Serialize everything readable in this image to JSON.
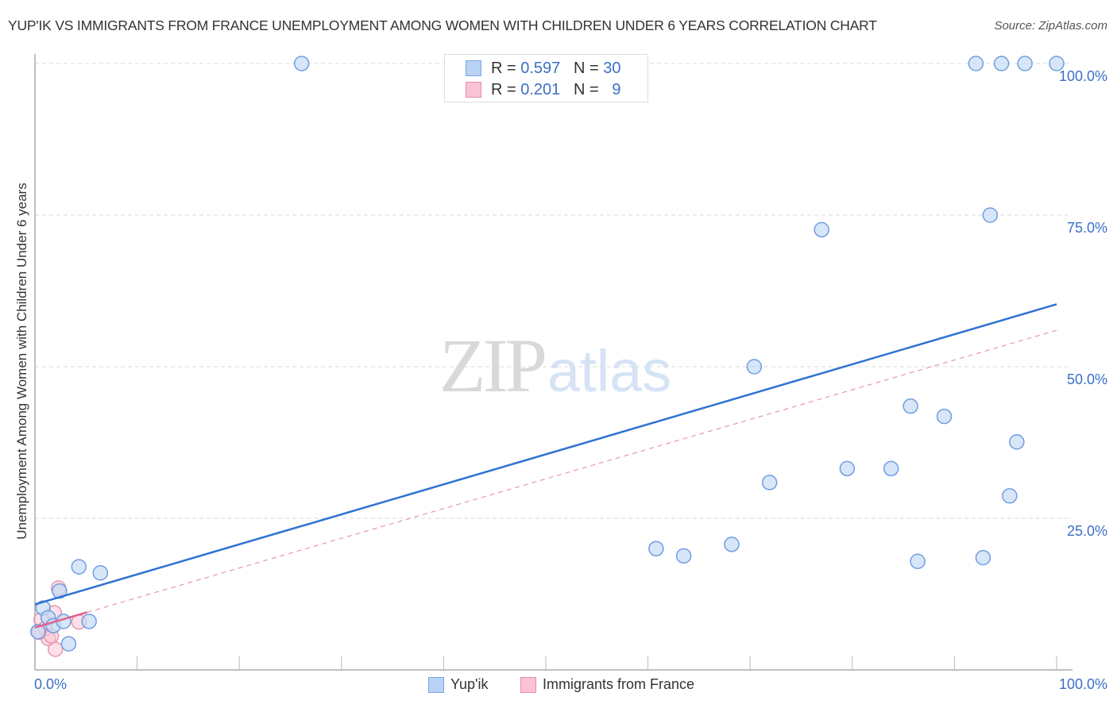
{
  "header": {
    "title": "YUP'IK VS IMMIGRANTS FROM FRANCE UNEMPLOYMENT AMONG WOMEN WITH CHILDREN UNDER 6 YEARS CORRELATION CHART",
    "source": "Source: ZipAtlas.com"
  },
  "watermark": {
    "zip": "ZIP",
    "atlas": "atlas"
  },
  "legend": {
    "rows": [
      {
        "r_label": "R = ",
        "r_value": "0.597",
        "n_label": "N = ",
        "n_value": "30",
        "color": "#b8d3f5",
        "border": "#7aa6e0"
      },
      {
        "r_label": "R = ",
        "r_value": "0.201",
        "n_label": "N = ",
        "n_value": " 9",
        "color": "#f9c3d3",
        "border": "#e98aa8"
      }
    ]
  },
  "bottom_legend": {
    "items": [
      {
        "label": "Yup'ik",
        "color": "#b8d3f5",
        "border": "#7aa6e0"
      },
      {
        "label": "Immigrants from France",
        "color": "#f9c3d3",
        "border": "#e98aa8"
      }
    ]
  },
  "axes": {
    "ylabel": "Unemployment Among Women with Children Under 6 years",
    "yticks": [
      "100.0%",
      "75.0%",
      "50.0%",
      "25.0%"
    ],
    "xticks": [
      "0.0%",
      "100.0%"
    ]
  },
  "colors": {
    "blue_fill": "#c6dbf6",
    "blue_stroke": "#6f9ee0",
    "blue_line": "#2f72d2",
    "pink_fill": "#f8c7d5",
    "pink_stroke": "#e995ae",
    "pink_line": "#e0608a",
    "tick_text": "#3b6fc4"
  },
  "chart_data": {
    "type": "scatter",
    "title": "YUP'IK VS IMMIGRANTS FROM FRANCE UNEMPLOYMENT AMONG WOMEN WITH CHILDREN UNDER 6 YEARS CORRELATION CHART",
    "xlabel": "",
    "ylabel": "Unemployment Among Women with Children Under 6 years",
    "xlim": [
      0,
      100
    ],
    "ylim": [
      0,
      100
    ],
    "x_tick_labels": [
      "0.0%",
      "100.0%"
    ],
    "y_tick_labels": [
      "25.0%",
      "50.0%",
      "75.0%",
      "100.0%"
    ],
    "grid": "horizontal dashed at 25/50/75/100",
    "legend_position": "top-center and bottom",
    "series": [
      {
        "name": "Yup'ik",
        "R": 0.597,
        "N": 30,
        "points": [
          [
            26.1,
            100
          ],
          [
            92.1,
            100
          ],
          [
            94.6,
            100
          ],
          [
            96.9,
            100
          ],
          [
            100,
            100
          ],
          [
            93.5,
            75.0
          ],
          [
            77.0,
            72.6
          ],
          [
            70.4,
            50.0
          ],
          [
            85.7,
            43.5
          ],
          [
            89.0,
            41.8
          ],
          [
            96.1,
            37.6
          ],
          [
            71.9,
            30.9
          ],
          [
            79.5,
            33.2
          ],
          [
            83.8,
            33.2
          ],
          [
            95.4,
            28.7
          ],
          [
            60.8,
            20.0
          ],
          [
            63.5,
            18.8
          ],
          [
            68.2,
            20.7
          ],
          [
            86.4,
            17.9
          ],
          [
            92.8,
            18.5
          ],
          [
            4.3,
            17.0
          ],
          [
            6.4,
            16.0
          ],
          [
            2.4,
            13.0
          ],
          [
            0.8,
            10.2
          ],
          [
            1.3,
            8.6
          ],
          [
            1.8,
            7.3
          ],
          [
            2.8,
            8.0
          ],
          [
            5.3,
            8.0
          ],
          [
            3.3,
            4.3
          ],
          [
            0.3,
            6.3
          ]
        ],
        "trend": {
          "x": [
            0,
            100
          ],
          "y": [
            10.8,
            60.3
          ]
        }
      },
      {
        "name": "Immigrants from France",
        "R": 0.201,
        "N": 9,
        "points": [
          [
            2.3,
            13.5
          ],
          [
            1.9,
            9.4
          ],
          [
            0.6,
            8.3
          ],
          [
            1.0,
            6.8
          ],
          [
            1.3,
            5.2
          ],
          [
            0.4,
            6.2
          ],
          [
            4.3,
            7.9
          ],
          [
            2.0,
            3.4
          ],
          [
            1.6,
            5.6
          ]
        ],
        "trend": {
          "x": [
            0,
            100
          ],
          "y": [
            7.0,
            56.0
          ],
          "solid_until_x": 5.1
        }
      }
    ]
  }
}
